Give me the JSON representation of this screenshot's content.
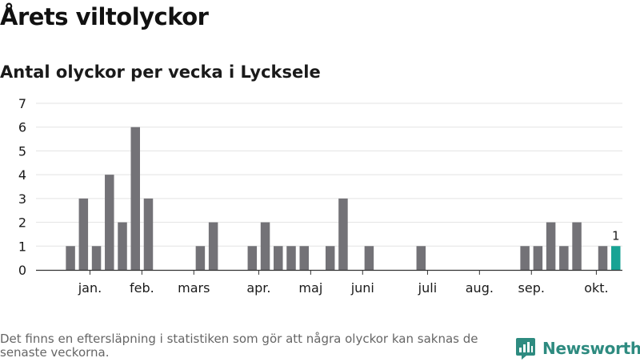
{
  "title": "Årets viltolyckor",
  "subtitle": "Antal olyckor per vecka i Lycksele",
  "footnote": "Det finns en eftersläpning i statistiken som gör att några olyckor kan saknas de senaste veckorna.",
  "brand": {
    "name": "Newsworthy",
    "logo_icon": "newsworthy-logo-icon"
  },
  "colors": {
    "bar": "#737277",
    "highlight": "#18a394",
    "grid": "#e3e3e3",
    "axis": "#333333",
    "text": "#1a1a1a"
  },
  "chart_data": {
    "type": "bar",
    "title": "Årets viltolyckor",
    "subtitle": "Antal olyckor per vecka i Lycksele",
    "xlabel": "",
    "ylabel": "",
    "x_unit": "vecka",
    "ylim": [
      0,
      7
    ],
    "yticks": [
      0,
      1,
      2,
      3,
      4,
      5,
      6,
      7
    ],
    "grid": true,
    "weeks": [
      1,
      2,
      3,
      4,
      5,
      6,
      7,
      8,
      9,
      10,
      11,
      12,
      13,
      14,
      15,
      16,
      17,
      18,
      19,
      20,
      21,
      22,
      23,
      24,
      25,
      26,
      27,
      28,
      29,
      30,
      31,
      32,
      33,
      34,
      35,
      36,
      37,
      38,
      39,
      40,
      41,
      42
    ],
    "values": [
      1,
      3,
      1,
      4,
      2,
      6,
      3,
      0,
      0,
      0,
      1,
      2,
      0,
      0,
      1,
      2,
      1,
      1,
      1,
      0,
      1,
      3,
      0,
      1,
      0,
      0,
      0,
      1,
      0,
      0,
      0,
      0,
      0,
      0,
      0,
      1,
      1,
      2,
      1,
      2,
      0,
      1
    ],
    "current_week": {
      "week": 43,
      "value": 1,
      "label": "1"
    },
    "month_ticks": [
      {
        "label": "jan.",
        "week": 2.5
      },
      {
        "label": "feb.",
        "week": 6.5
      },
      {
        "label": "mars",
        "week": 10.5
      },
      {
        "label": "apr.",
        "week": 15.5
      },
      {
        "label": "maj",
        "week": 19.5
      },
      {
        "label": "juni",
        "week": 23.5
      },
      {
        "label": "juli",
        "week": 28.5
      },
      {
        "label": "aug.",
        "week": 32.5
      },
      {
        "label": "sep.",
        "week": 36.5
      },
      {
        "label": "okt.",
        "week": 41.5
      }
    ]
  }
}
